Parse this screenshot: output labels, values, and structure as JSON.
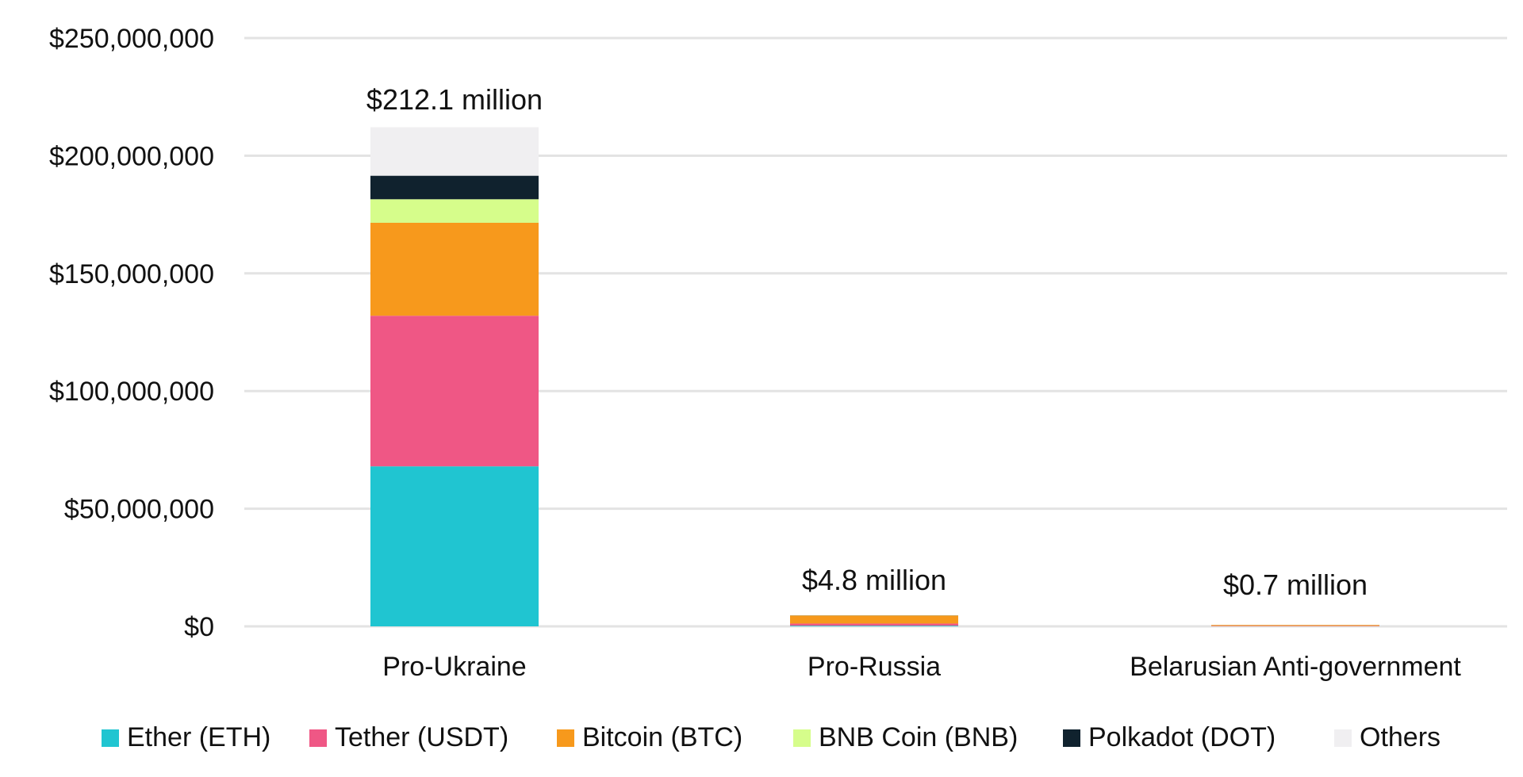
{
  "chart_data": {
    "type": "bar",
    "stacked": true,
    "categories": [
      "Pro-Ukraine",
      "Pro-Russia",
      "Belarusian Anti-government"
    ],
    "totals_labels": [
      "$212.1 million",
      "$4.8 million",
      "$0.7 million"
    ],
    "ylim": [
      0,
      250000000
    ],
    "yticks": [
      0,
      50000000,
      100000000,
      150000000,
      200000000,
      250000000
    ],
    "ytick_labels": [
      "$0",
      "$50,000,000",
      "$100,000,000",
      "$150,000,000",
      "$200,000,000",
      "$250,000,000"
    ],
    "grid": true,
    "legend_position": "bottom",
    "series": [
      {
        "name": "Ether (ETH)",
        "color": "#20c5d1",
        "values": [
          68000000,
          300000,
          50000
        ]
      },
      {
        "name": "Tether (USDT)",
        "color": "#ef5785",
        "values": [
          64000000,
          900000,
          150000
        ]
      },
      {
        "name": "Bitcoin (BTC)",
        "color": "#f7991c",
        "values": [
          39500000,
          3400000,
          400000
        ]
      },
      {
        "name": "BNB Coin (BNB)",
        "color": "#d6fd8b",
        "values": [
          10000000,
          50000,
          20000
        ]
      },
      {
        "name": "Polkadot (DOT)",
        "color": "#10222e",
        "values": [
          10000000,
          50000,
          10000
        ]
      },
      {
        "name": "Others",
        "color": "#f0eff1",
        "values": [
          20600000,
          100000,
          70000
        ]
      }
    ]
  }
}
